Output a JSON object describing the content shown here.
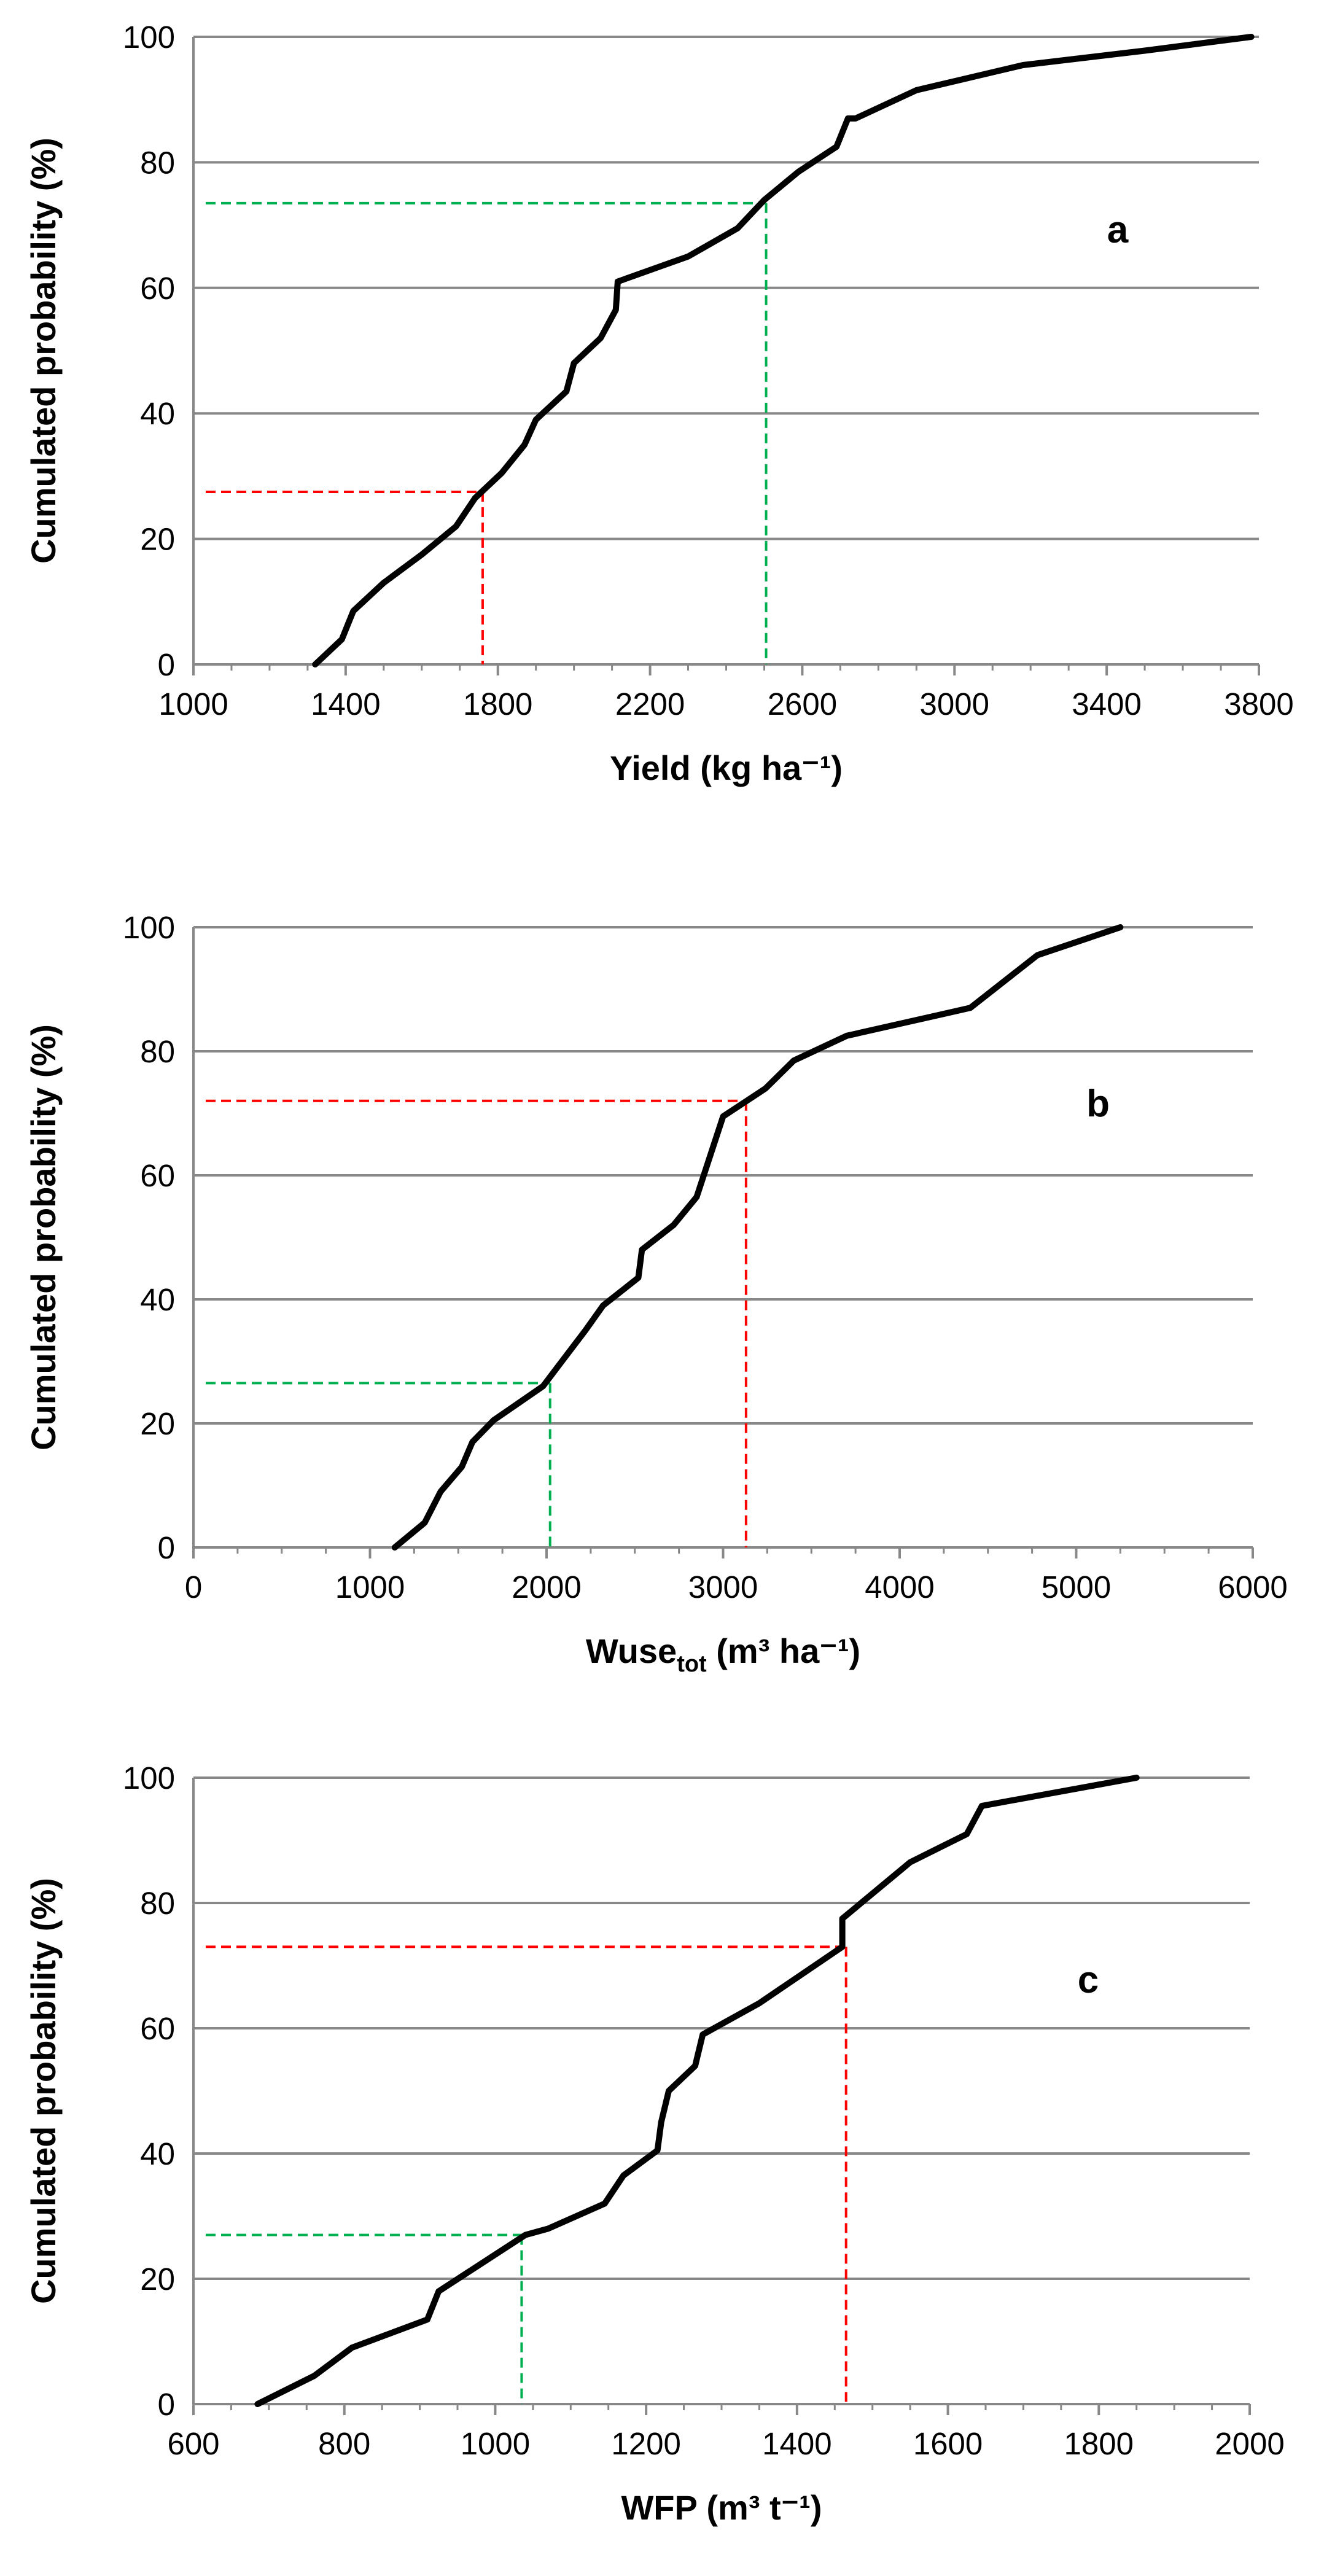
{
  "chart_data": [
    {
      "type": "line",
      "panel_label": "a",
      "xlabel": "Yield (kg ha⁻¹)",
      "ylabel": "Cumulated probability (%)",
      "xlim": [
        1000,
        3800
      ],
      "ylim": [
        0,
        100
      ],
      "xticks": [
        1000,
        1400,
        1800,
        2200,
        2600,
        3000,
        3400,
        3800
      ],
      "yticks": [
        0,
        20,
        40,
        60,
        80,
        100
      ],
      "grid": "horizontal",
      "series": [
        {
          "name": "cumulative distribution",
          "color": "#000000",
          "x": [
            1320,
            1390,
            1420,
            1500,
            1600,
            1690,
            1740,
            1810,
            1870,
            1900,
            1980,
            2000,
            2070,
            2110,
            2115,
            2300,
            2430,
            2500,
            2590,
            2690,
            2720,
            2740,
            2900,
            3180,
            3500,
            3780
          ],
          "y": [
            0,
            4,
            8.5,
            13,
            17.5,
            22,
            26.5,
            30.5,
            35,
            39,
            43.5,
            48,
            52,
            56.5,
            61,
            65,
            69.5,
            74,
            78.5,
            82.5,
            87,
            87,
            91.5,
            95.5,
            97.8,
            100
          ]
        }
      ],
      "reference_lines": [
        {
          "name": "green",
          "color": "#00b050",
          "x": 2505,
          "y": 73.5
        },
        {
          "name": "red",
          "color": "#ff0000",
          "x": 1760,
          "y": 27.5
        }
      ]
    },
    {
      "type": "line",
      "panel_label": "b",
      "xlabel": "Wuse",
      "xlabel_sub": "tot",
      "xlabel_tail": " (m³ ha⁻¹)",
      "ylabel": "Cumulated probability (%)",
      "xlim": [
        0,
        6000
      ],
      "ylim": [
        0,
        100
      ],
      "xticks": [
        0,
        1000,
        2000,
        3000,
        4000,
        5000,
        6000
      ],
      "yticks": [
        0,
        20,
        40,
        60,
        80,
        100
      ],
      "grid": "horizontal",
      "series": [
        {
          "name": "cumulative distribution",
          "color": "#000000",
          "x": [
            1140,
            1310,
            1400,
            1520,
            1580,
            1700,
            1980,
            2100,
            2220,
            2320,
            2520,
            2540,
            2720,
            2850,
            3000,
            3240,
            3400,
            3700,
            4400,
            4780,
            5250
          ],
          "y": [
            0,
            4,
            9,
            13,
            17,
            20.5,
            26,
            30.5,
            35,
            39,
            43.5,
            48,
            52,
            56.5,
            69.5,
            74,
            78.5,
            82.5,
            87,
            95.5,
            100
          ]
        }
      ],
      "reference_lines": [
        {
          "name": "red",
          "color": "#ff0000",
          "x": 3130,
          "y": 72
        },
        {
          "name": "green",
          "color": "#00b050",
          "x": 2020,
          "y": 26.5
        }
      ]
    },
    {
      "type": "line",
      "panel_label": "c",
      "xlabel": "WFP (m³ t⁻¹)",
      "ylabel": "Cumulated probability (%)",
      "xlim": [
        600,
        2000
      ],
      "ylim": [
        0,
        100
      ],
      "xticks": [
        600,
        800,
        1000,
        1200,
        1400,
        1600,
        1800,
        2000
      ],
      "yticks": [
        0,
        20,
        40,
        60,
        80,
        100
      ],
      "grid": "horizontal",
      "series": [
        {
          "name": "cumulative distribution",
          "color": "#000000",
          "x": [
            685,
            760,
            810,
            910,
            925,
            1040,
            1070,
            1145,
            1170,
            1215,
            1220,
            1230,
            1265,
            1275,
            1350,
            1460,
            1460,
            1550,
            1625,
            1645,
            1850
          ],
          "y": [
            0,
            4.5,
            9,
            13.5,
            18,
            27,
            28,
            32,
            36.5,
            40.5,
            45,
            50,
            54,
            59,
            64,
            73,
            77.5,
            86.5,
            91,
            95.5,
            100
          ]
        }
      ],
      "reference_lines": [
        {
          "name": "red",
          "color": "#ff0000",
          "x": 1465,
          "y": 73
        },
        {
          "name": "green",
          "color": "#00b050",
          "x": 1035,
          "y": 27
        }
      ]
    }
  ]
}
